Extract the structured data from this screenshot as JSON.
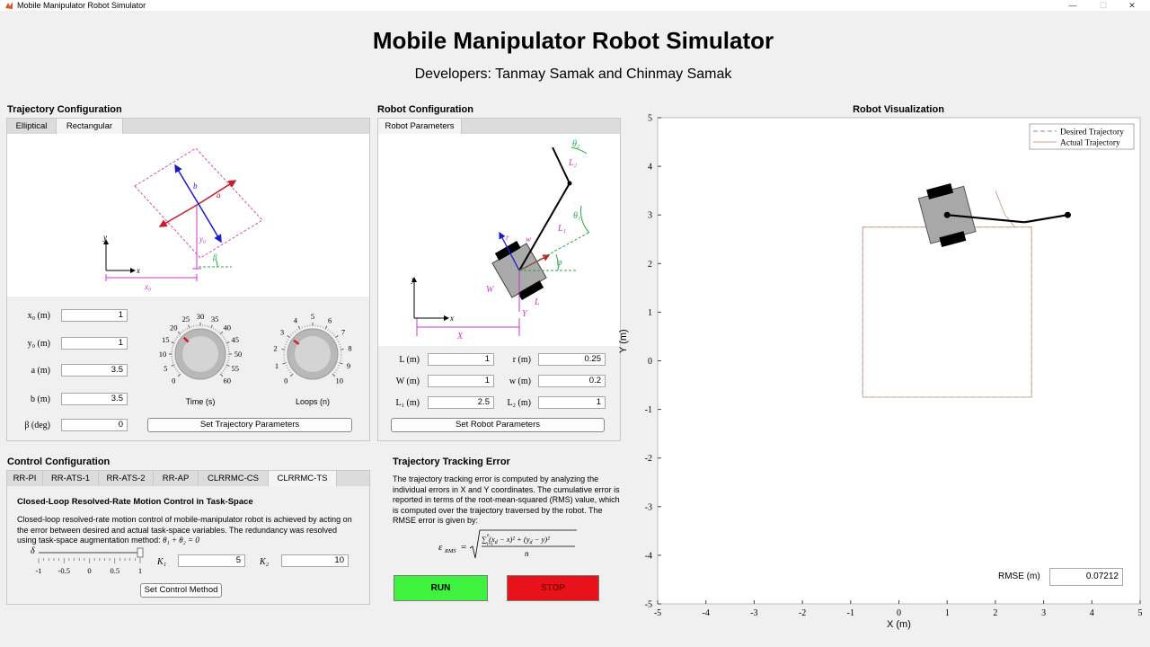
{
  "window": {
    "title": "Mobile Manipulator Robot Simulator",
    "minimize": "—",
    "maximize": "☐",
    "close": "✕"
  },
  "header": {
    "title": "Mobile Manipulator Robot Simulator",
    "subtitle": "Developers: Tanmay Samak and Chinmay Samak"
  },
  "trajectory": {
    "section_title": "Trajectory Configuration",
    "tabs": [
      "Elliptical",
      "Rectangular"
    ],
    "active_tab": "Rectangular",
    "fields": [
      {
        "label": "x₀ (m)",
        "value": "1"
      },
      {
        "label": "y₀ (m)",
        "value": "1"
      },
      {
        "label": "a (m)",
        "value": "3.5"
      },
      {
        "label": "b (m)",
        "value": "3.5"
      },
      {
        "label": "β (deg)",
        "value": "0"
      }
    ],
    "time_knob": {
      "label": "Time (s)",
      "ticks": [
        "0",
        "5",
        "10",
        "15",
        "20",
        "25",
        "30",
        "35",
        "40",
        "45",
        "50",
        "55",
        "60"
      ],
      "value": 20
    },
    "loops_knob": {
      "label": "Loops (n)",
      "ticks": [
        "0",
        "1",
        "2",
        "3",
        "4",
        "5",
        "6",
        "7",
        "8",
        "9",
        "10"
      ],
      "value": 3
    },
    "set_button": "Set Trajectory Parameters",
    "diagram_labels": {
      "y": "y",
      "x": "x",
      "x0": "x₀",
      "y0": "y₀",
      "a": "a",
      "b": "b",
      "beta": "β"
    }
  },
  "robot": {
    "section_title": "Robot Configuration",
    "tab": "Robot Parameters",
    "fields_left": [
      {
        "label": "L (m)",
        "value": "1"
      },
      {
        "label": "W (m)",
        "value": "1"
      },
      {
        "label": "L₁ (m)",
        "value": "2.5"
      }
    ],
    "fields_right": [
      {
        "label": "r (m)",
        "value": "0.25"
      },
      {
        "label": "w (m)",
        "value": "0.2"
      },
      {
        "label": "L₂ (m)",
        "value": "1"
      }
    ],
    "set_button": "Set Robot Parameters",
    "diagram_labels": {
      "y": "y",
      "x": "x",
      "X": "X",
      "Y": "Y",
      "W": "W",
      "L": "L",
      "r": "r",
      "w": "w",
      "L1": "L₁",
      "L2": "L₂",
      "theta1": "θ₁",
      "theta2": "θ₂",
      "phi": "φ"
    }
  },
  "control": {
    "section_title": "Control Configuration",
    "tabs": [
      "RR-PI",
      "RR-ATS-1",
      "RR-ATS-2",
      "RR-AP",
      "CLRRMC-CS",
      "CLRRMC-TS"
    ],
    "active_tab": "CLRRMC-TS",
    "method_title": "Closed-Loop Resolved-Rate Motion Control in Task-Space",
    "description": "Closed-loop resolved-rate motion control of mobile-manipulator robot is achieved by acting on the error between desired and actual task-space variables. The redundancy was resolved using task-space augmentation method:",
    "constraint": "θ₁ + θ₂ = 0",
    "delta_label": "δ",
    "slider_ticks": [
      "-1",
      "-0.5",
      "0",
      "0.5",
      "1"
    ],
    "slider_value": 1,
    "k1_label": "K₁",
    "k1_value": "5",
    "k2_label": "K₂",
    "k2_value": "10",
    "set_button": "Set Control Method"
  },
  "error": {
    "section_title": "Trajectory Tracking Error",
    "description": "The trajectory tracking error is computed by analyzing the individual errors in X and Y coordinates. The cumulative error is reported in terms of the root-mean-squared (RMS) value, which is computed over the trajectory traversed by the robot. The RMSE error is given by:",
    "formula": "ε_RMS = √( Σᵢ₌₁ⁿ (x_d − x)² + (y_d − y)² / n )"
  },
  "actions": {
    "run": "RUN",
    "stop": "STOP"
  },
  "visualization": {
    "title": "Robot Visualization",
    "xlabel": "X (m)",
    "ylabel": "Y (m)",
    "xticks": [
      "-5",
      "-4",
      "-3",
      "-2",
      "-1",
      "0",
      "1",
      "2",
      "3",
      "4",
      "5"
    ],
    "yticks": [
      "5",
      "4",
      "3",
      "2",
      "1",
      "0",
      "-1",
      "-2",
      "-3",
      "-4",
      "-5"
    ],
    "legend": [
      "Desired Trajectory",
      "Actual Trajectory"
    ],
    "rmse_label": "RMSE (m)",
    "rmse_value": "0.07212"
  },
  "chart_data": {
    "type": "line",
    "title": "Robot Visualization",
    "xlabel": "X (m)",
    "ylabel": "Y (m)",
    "xlim": [
      -5,
      5
    ],
    "ylim": [
      -5,
      5
    ],
    "grid": false,
    "legend_position": "top-right",
    "series": [
      {
        "name": "Desired Trajectory",
        "x": [
          -0.75,
          2.75,
          2.75,
          -0.75,
          -0.75
        ],
        "y": [
          2.75,
          2.75,
          -0.75,
          -0.75,
          2.75
        ]
      },
      {
        "name": "Actual Trajectory",
        "x": [
          -0.75,
          2.75,
          2.75,
          -0.75,
          -0.75,
          2.4,
          2.2,
          2.0
        ],
        "y": [
          2.75,
          2.75,
          -0.75,
          -0.75,
          2.75,
          2.75,
          3.0,
          3.5
        ]
      }
    ],
    "robot": {
      "base_x": 1.0,
      "base_y": 3.0,
      "ee_x": 3.5,
      "ee_y": 3.0,
      "elbow_x": 2.6,
      "elbow_y": 2.85
    }
  }
}
